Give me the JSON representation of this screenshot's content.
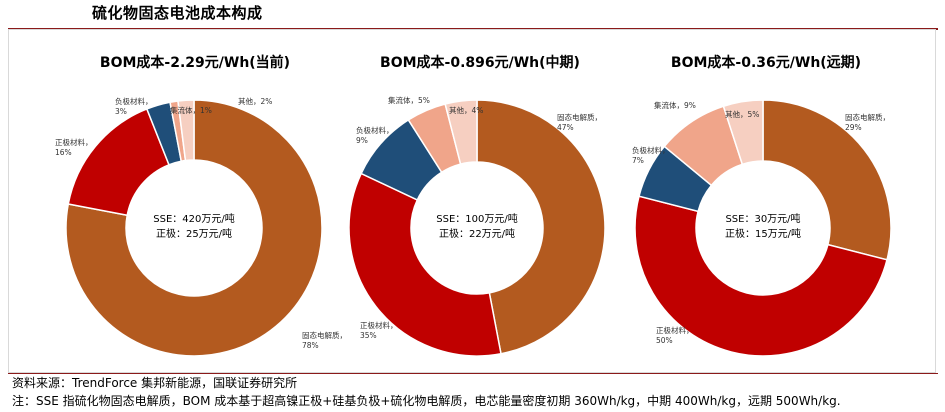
{
  "page": {
    "title": "硫化物固态电池成本构成",
    "source": "资料来源：TrendForce 集邦新能源，国联证券研究所",
    "note": "注：SSE 指硫化物固态电解质，BOM 成本基于超高镍正极+硅基负极+硫化物电解质，电芯能量密度初期 360Wh/kg，中期 400Wh/kg，远期 500Wh/kg."
  },
  "colors": {
    "固态电解质": "#b35a1f",
    "正极材料": "#c00000",
    "负极材料": "#1f4e79",
    "集流体": "#f0a58a",
    "其他": "#f6cfc1"
  },
  "chart_data": [
    {
      "type": "pie",
      "title": "BOM成本-2.29元/Wh(当前)",
      "center_text": [
        "SSE：420万元/吨",
        "正极：25万元/吨"
      ],
      "slices": [
        {
          "name": "固态电解质",
          "value": 78
        },
        {
          "name": "正极材料",
          "value": 16
        },
        {
          "name": "负极材料",
          "value": 3
        },
        {
          "name": "集流体",
          "value": 1
        },
        {
          "name": "其他",
          "value": 2
        }
      ],
      "labels": [
        "固态电解质，\n78%",
        "正极材料，\n16%",
        "负极材料，\n3%",
        "集流体，1%",
        "其他，2%"
      ]
    },
    {
      "type": "pie",
      "title": "BOM成本-0.896元/Wh(中期)",
      "center_text": [
        "SSE：100万元/吨",
        "正极：22万元/吨"
      ],
      "slices": [
        {
          "name": "固态电解质",
          "value": 47
        },
        {
          "name": "正极材料",
          "value": 35
        },
        {
          "name": "负极材料",
          "value": 9
        },
        {
          "name": "集流体",
          "value": 5
        },
        {
          "name": "其他",
          "value": 4
        }
      ],
      "labels": [
        "固态电解质，\n47%",
        "正极材料，\n35%",
        "负极材料，\n9%",
        "集流体，5%",
        "其他，4%"
      ]
    },
    {
      "type": "pie",
      "title": "BOM成本-0.36元/Wh(远期)",
      "center_text": [
        "SSE：30万元/吨",
        "正极：15万元/吨"
      ],
      "slices": [
        {
          "name": "固态电解质",
          "value": 29
        },
        {
          "name": "正极材料",
          "value": 50
        },
        {
          "name": "负极材料",
          "value": 7
        },
        {
          "name": "集流体",
          "value": 9
        },
        {
          "name": "其他",
          "value": 5
        }
      ],
      "labels": [
        "固态电解质，\n29%",
        "正极材料，\n50%",
        "负极材料，\n7%",
        "集流体，9%",
        "其他，5%"
      ]
    }
  ]
}
